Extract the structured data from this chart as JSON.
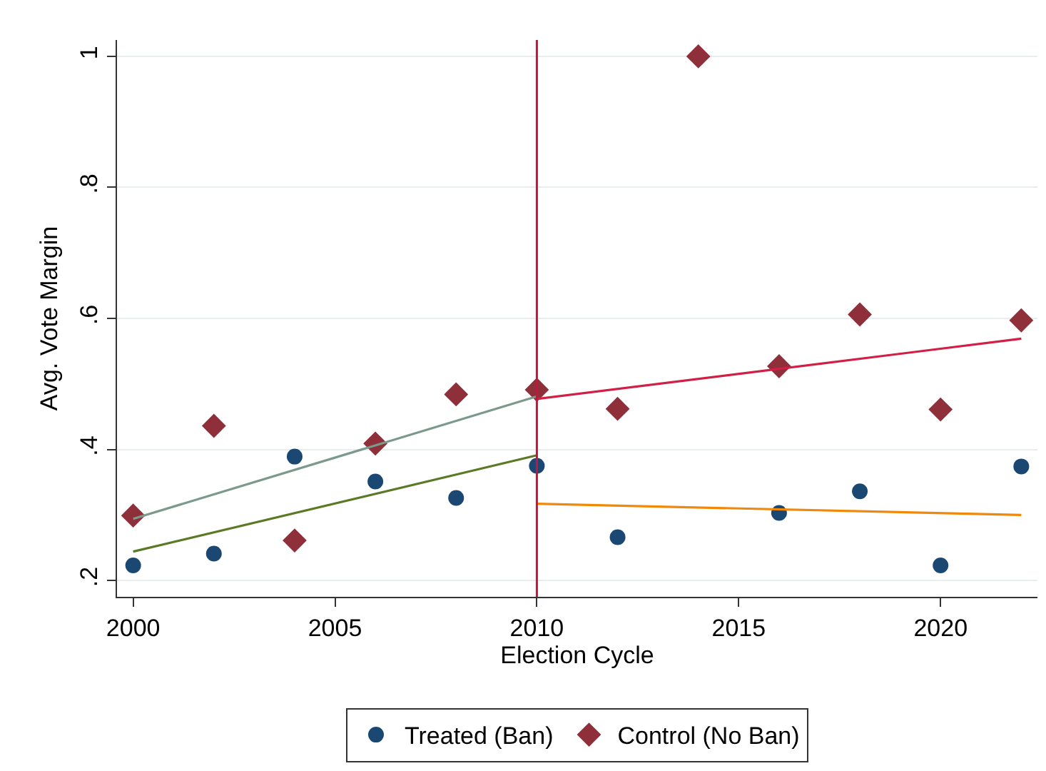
{
  "chart_data": {
    "type": "scatter",
    "xlabel": "Election Cycle",
    "ylabel": "Avg. Vote Margin",
    "x": [
      2000,
      2002,
      2004,
      2006,
      2008,
      2010,
      2012,
      2014,
      2016,
      2018,
      2020,
      2022
    ],
    "series": [
      {
        "name": "Treated (Ban)",
        "color": "#1a4872",
        "marker": "circle",
        "x": [
          2000,
          2002,
          2004,
          2006,
          2008,
          2010,
          2012,
          2016,
          2018,
          2020,
          2022
        ],
        "values": [
          0.223,
          0.241,
          0.389,
          0.351,
          0.326,
          0.375,
          0.266,
          0.303,
          0.336,
          0.223,
          0.374
        ]
      },
      {
        "name": "Control (No Ban)",
        "color": "#8f2f3a",
        "marker": "diamond",
        "values": [
          0.299,
          0.436,
          0.261,
          0.409,
          0.484,
          0.491,
          0.462,
          1.0,
          0.527,
          0.606,
          0.461,
          0.597
        ]
      },
      {
        "type": "line",
        "color": "#7b9a8c",
        "x": [
          2000,
          2010
        ],
        "values": [
          0.294,
          0.481
        ]
      },
      {
        "type": "line",
        "color": "#5b7a26",
        "x": [
          2000,
          2010
        ],
        "values": [
          0.244,
          0.391
        ]
      },
      {
        "type": "line",
        "color": "#d21f45",
        "x": [
          2010,
          2022
        ],
        "values": [
          0.477,
          0.569
        ]
      },
      {
        "type": "line",
        "color": "#f0890a",
        "x": [
          2010,
          2022
        ],
        "values": [
          0.317,
          0.3
        ]
      }
    ],
    "xlim": [
      1999.6,
      2022.4
    ],
    "xticks": [
      2000,
      2005,
      2010,
      2015,
      2020
    ],
    "ylim": [
      0.175,
      1.025
    ],
    "yticks": [
      {
        "value": 0.2,
        "label": ".2"
      },
      {
        "value": 0.4,
        "label": ".4"
      },
      {
        "value": 0.6,
        "label": ".6"
      },
      {
        "value": 0.8,
        "label": ".8"
      },
      1
    ],
    "ref_lines": [
      {
        "axis": "x",
        "value": 2010,
        "color": "#c8143c"
      }
    ],
    "grid": "y",
    "legend": "bottom"
  }
}
